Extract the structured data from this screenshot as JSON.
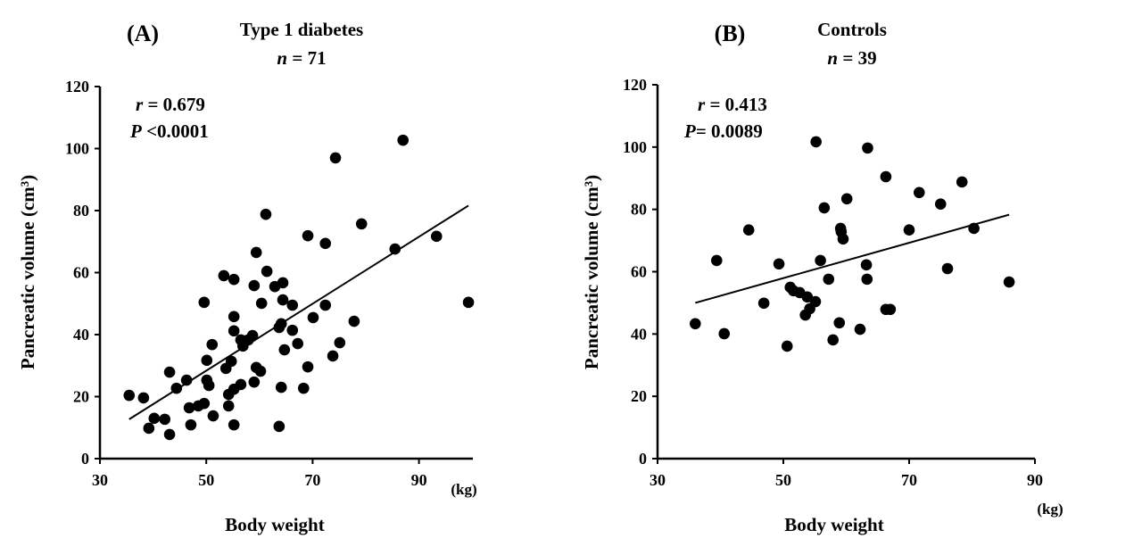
{
  "chart_data": [
    {
      "type": "scatter",
      "panel_label": "(A)",
      "title": "Type 1 diabetes",
      "n_label": "n",
      "n_value": "= 71",
      "r_label": "r",
      "r_value": "= 0.679",
      "p_label": "P",
      "p_value": "<0.0001",
      "xlabel": "Body weight",
      "x_unit": "(kg)",
      "ylabel": "Pancreatic volume (cm³)",
      "xlim": [
        30,
        100
      ],
      "ylim": [
        0,
        120
      ],
      "xticks": [
        30,
        50,
        70,
        90
      ],
      "yticks": [
        0,
        20,
        40,
        60,
        80,
        100,
        120
      ],
      "grid": false,
      "trendline": {
        "x": [
          35.5,
          99.3
        ],
        "y": [
          12.7,
          81.6
        ]
      },
      "points": [
        [
          35.5,
          20.4
        ],
        [
          38.2,
          19.6
        ],
        [
          39.2,
          9.8
        ],
        [
          40.2,
          13.0
        ],
        [
          42.2,
          12.7
        ],
        [
          43.1,
          7.8
        ],
        [
          43.1,
          27.9
        ],
        [
          44.4,
          22.7
        ],
        [
          46.3,
          25.3
        ],
        [
          46.8,
          16.4
        ],
        [
          47.1,
          10.9
        ],
        [
          48.5,
          17.0
        ],
        [
          49.6,
          17.8
        ],
        [
          49.6,
          50.4
        ],
        [
          50.1,
          31.7
        ],
        [
          50.1,
          25.3
        ],
        [
          50.5,
          23.6
        ],
        [
          51.3,
          13.8
        ],
        [
          51.1,
          36.8
        ],
        [
          53.3,
          59.0
        ],
        [
          53.7,
          29.1
        ],
        [
          54.2,
          17.0
        ],
        [
          54.2,
          20.7
        ],
        [
          54.7,
          31.4
        ],
        [
          55.2,
          10.9
        ],
        [
          55.2,
          57.8
        ],
        [
          55.2,
          45.8
        ],
        [
          55.2,
          41.2
        ],
        [
          55.2,
          22.4
        ],
        [
          56.5,
          23.9
        ],
        [
          56.5,
          38.3
        ],
        [
          56.9,
          36.3
        ],
        [
          57.9,
          38.3
        ],
        [
          58.7,
          39.7
        ],
        [
          59.0,
          55.8
        ],
        [
          59.0,
          24.7
        ],
        [
          59.4,
          66.5
        ],
        [
          59.4,
          29.4
        ],
        [
          60.2,
          28.2
        ],
        [
          60.4,
          50.1
        ],
        [
          61.4,
          60.4
        ],
        [
          61.2,
          78.8
        ],
        [
          62.9,
          55.5
        ],
        [
          63.7,
          42.3
        ],
        [
          64.1,
          43.5
        ],
        [
          64.1,
          23.0
        ],
        [
          63.7,
          10.4
        ],
        [
          64.4,
          51.2
        ],
        [
          64.4,
          56.7
        ],
        [
          64.7,
          35.1
        ],
        [
          66.2,
          49.5
        ],
        [
          66.2,
          41.4
        ],
        [
          67.2,
          37.1
        ],
        [
          68.3,
          22.7
        ],
        [
          69.1,
          71.9
        ],
        [
          69.1,
          29.6
        ],
        [
          70.1,
          45.5
        ],
        [
          72.4,
          69.4
        ],
        [
          72.4,
          49.5
        ],
        [
          73.8,
          33.1
        ],
        [
          74.3,
          97.0
        ],
        [
          75.1,
          37.4
        ],
        [
          77.8,
          44.3
        ],
        [
          79.2,
          75.7
        ],
        [
          85.5,
          67.6
        ],
        [
          87.0,
          102.7
        ],
        [
          93.3,
          71.7
        ],
        [
          99.3,
          50.4
        ]
      ]
    },
    {
      "type": "scatter",
      "panel_label": "(B)",
      "title": "Controls",
      "n_label": "n",
      "n_value": "= 39",
      "r_label": "r",
      "r_value": "= 0.413",
      "p_label": "P",
      "p_value": "= 0.0089",
      "xlabel": "Body weight",
      "x_unit": "(kg)",
      "ylabel": "Pancreatic volume (cm³)",
      "xlim": [
        30,
        90
      ],
      "ylim": [
        0,
        120
      ],
      "xticks": [
        30,
        50,
        70,
        90
      ],
      "yticks": [
        0,
        20,
        40,
        60,
        80,
        100,
        120
      ],
      "grid": false,
      "trendline": {
        "x": [
          36.0,
          85.9
        ],
        "y": [
          50.0,
          78.3
        ]
      },
      "points": [
        [
          36.0,
          43.3
        ],
        [
          39.4,
          63.6
        ],
        [
          40.6,
          40.1
        ],
        [
          44.5,
          73.4
        ],
        [
          46.9,
          49.9
        ],
        [
          49.3,
          62.5
        ],
        [
          50.6,
          36.1
        ],
        [
          51.1,
          55.0
        ],
        [
          51.6,
          53.9
        ],
        [
          52.6,
          53.3
        ],
        [
          53.8,
          51.9
        ],
        [
          55.1,
          50.4
        ],
        [
          53.5,
          46.1
        ],
        [
          54.2,
          48.1
        ],
        [
          55.2,
          101.7
        ],
        [
          55.9,
          63.6
        ],
        [
          56.5,
          80.5
        ],
        [
          57.2,
          57.6
        ],
        [
          57.9,
          38.1
        ],
        [
          58.9,
          43.6
        ],
        [
          59.1,
          73.9
        ],
        [
          59.2,
          72.8
        ],
        [
          59.5,
          70.5
        ],
        [
          60.1,
          83.4
        ],
        [
          63.2,
          62.2
        ],
        [
          62.2,
          41.5
        ],
        [
          63.3,
          57.6
        ],
        [
          63.4,
          99.7
        ],
        [
          66.3,
          47.9
        ],
        [
          67.0,
          47.9
        ],
        [
          66.3,
          90.5
        ],
        [
          70.0,
          73.4
        ],
        [
          71.6,
          85.4
        ],
        [
          75.0,
          81.7
        ],
        [
          76.1,
          61.0
        ],
        [
          78.4,
          88.8
        ],
        [
          80.3,
          73.9
        ],
        [
          85.9,
          56.7
        ]
      ]
    }
  ]
}
